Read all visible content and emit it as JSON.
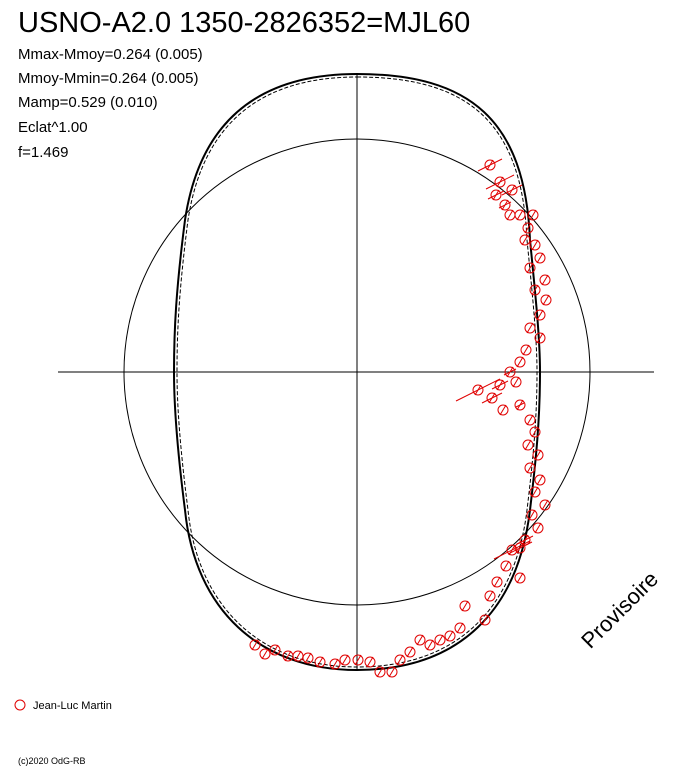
{
  "header": {
    "title": "USNO-A2.0 1350-2826352=MJL60"
  },
  "stats": [
    "Mmax-Mmoy=0.264 (0.005)",
    "Mmoy-Mmin=0.264 (0.005)",
    "Mamp=0.529 (0.010)",
    "Eclat^1.00",
    "f=1.469"
  ],
  "watermark": "Provisoire",
  "legend": "Jean-Luc Martin",
  "footer": "(c)2020 OdG-RB"
}
